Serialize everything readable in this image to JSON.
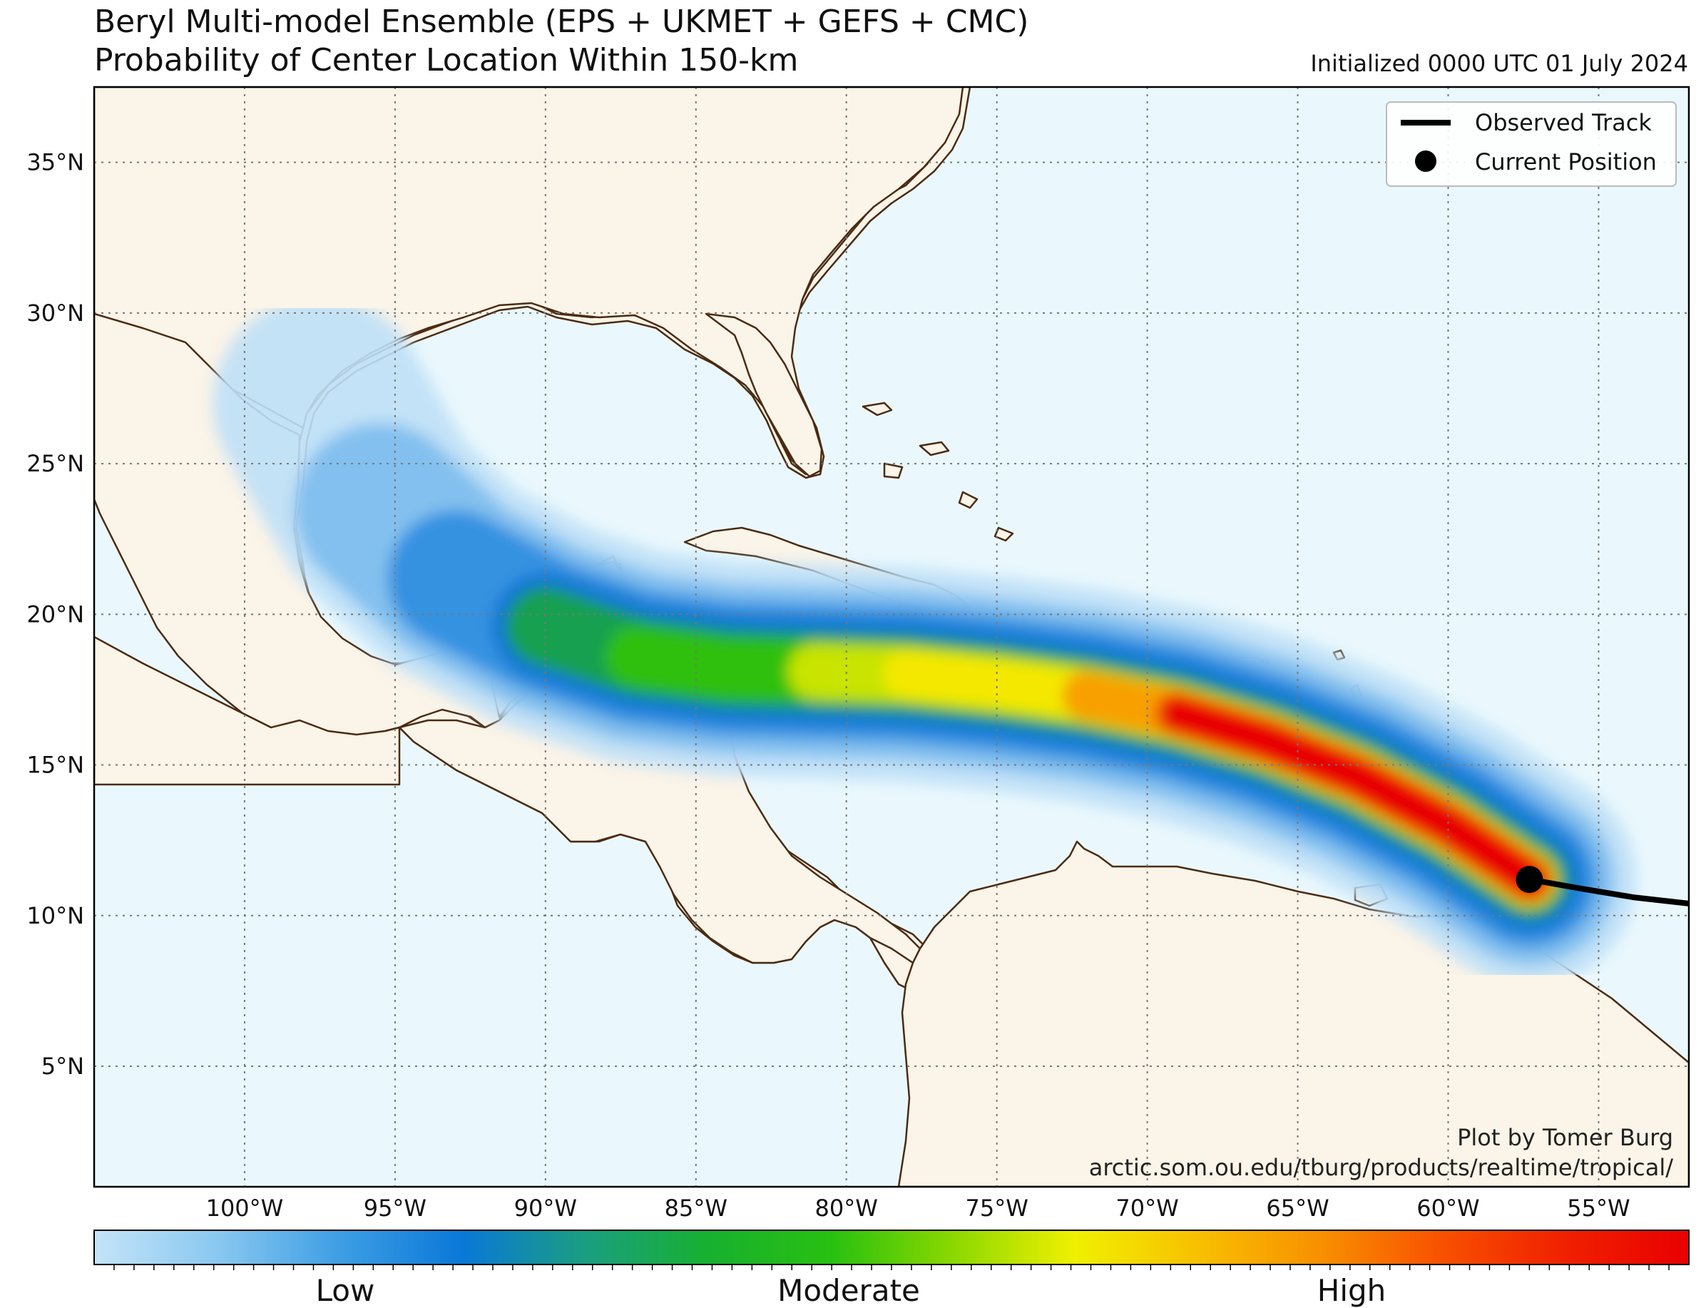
{
  "header": {
    "title_line1": "Beryl Multi-model Ensemble (EPS + UKMET + GEFS + CMC)",
    "title_line2": "Probability of Center Location Within 150-km",
    "initialized": "Initialized 0000 UTC 01 July 2024"
  },
  "map": {
    "extent": {
      "lon_min": -105,
      "lon_max": -52,
      "lat_min": 1,
      "lat_max": 37.5
    },
    "lat_ticks": [
      {
        "value": 35,
        "label": "35°N"
      },
      {
        "value": 30,
        "label": "30°N"
      },
      {
        "value": 25,
        "label": "25°N"
      },
      {
        "value": 20,
        "label": "20°N"
      },
      {
        "value": 15,
        "label": "15°N"
      },
      {
        "value": 10,
        "label": "10°N"
      },
      {
        "value": 5,
        "label": "5°N"
      }
    ],
    "lon_ticks": [
      {
        "value": -100,
        "label": "100°W"
      },
      {
        "value": -95,
        "label": "95°W"
      },
      {
        "value": -90,
        "label": "90°W"
      },
      {
        "value": -85,
        "label": "85°W"
      },
      {
        "value": -80,
        "label": "80°W"
      },
      {
        "value": -75,
        "label": "75°W"
      },
      {
        "value": -70,
        "label": "70°W"
      },
      {
        "value": -65,
        "label": "65°W"
      },
      {
        "value": -60,
        "label": "60°W"
      },
      {
        "value": -55,
        "label": "55°W"
      }
    ],
    "colors": {
      "ocean": "#eaf8fd",
      "land": "#fbf4e8",
      "coast": "#4a2b12",
      "grid": "#777777"
    }
  },
  "observed_track": [
    [
      -57.3,
      11.2
    ],
    [
      -55.6,
      10.9
    ],
    [
      -53.8,
      10.6
    ],
    [
      -52.0,
      10.4
    ]
  ],
  "current_position": {
    "lon": -57.3,
    "lat": 11.2
  },
  "forecast_axis": [
    [
      -57.3,
      11.2
    ],
    [
      -60,
      13.0
    ],
    [
      -63,
      14.6
    ],
    [
      -66,
      15.8
    ],
    [
      -69,
      16.7
    ],
    [
      -72,
      17.3
    ],
    [
      -75,
      17.7
    ],
    [
      -78,
      18.0
    ],
    [
      -81,
      18.1
    ],
    [
      -84,
      18.2
    ],
    [
      -87,
      18.6
    ],
    [
      -90,
      19.6
    ],
    [
      -93,
      21.2
    ],
    [
      -95.5,
      23.5
    ],
    [
      -97.5,
      27
    ]
  ],
  "legend": {
    "observed_track": "Observed Track",
    "current_position": "Current Position"
  },
  "credits": {
    "line1": "Plot by Tomer Burg",
    "line2": "arctic.som.ou.edu/tburg/products/realtime/tropical/"
  },
  "colorbar": {
    "low": "Low",
    "moderate": "Moderate",
    "high": "High",
    "stops": [
      "#c4e4f8",
      "#8ac8f0",
      "#3e9ee4",
      "#0a78d8",
      "#1a9e80",
      "#18b030",
      "#28c010",
      "#8ad800",
      "#f0f000",
      "#f8c000",
      "#f89000",
      "#f85000",
      "#f02000",
      "#e80000"
    ]
  }
}
